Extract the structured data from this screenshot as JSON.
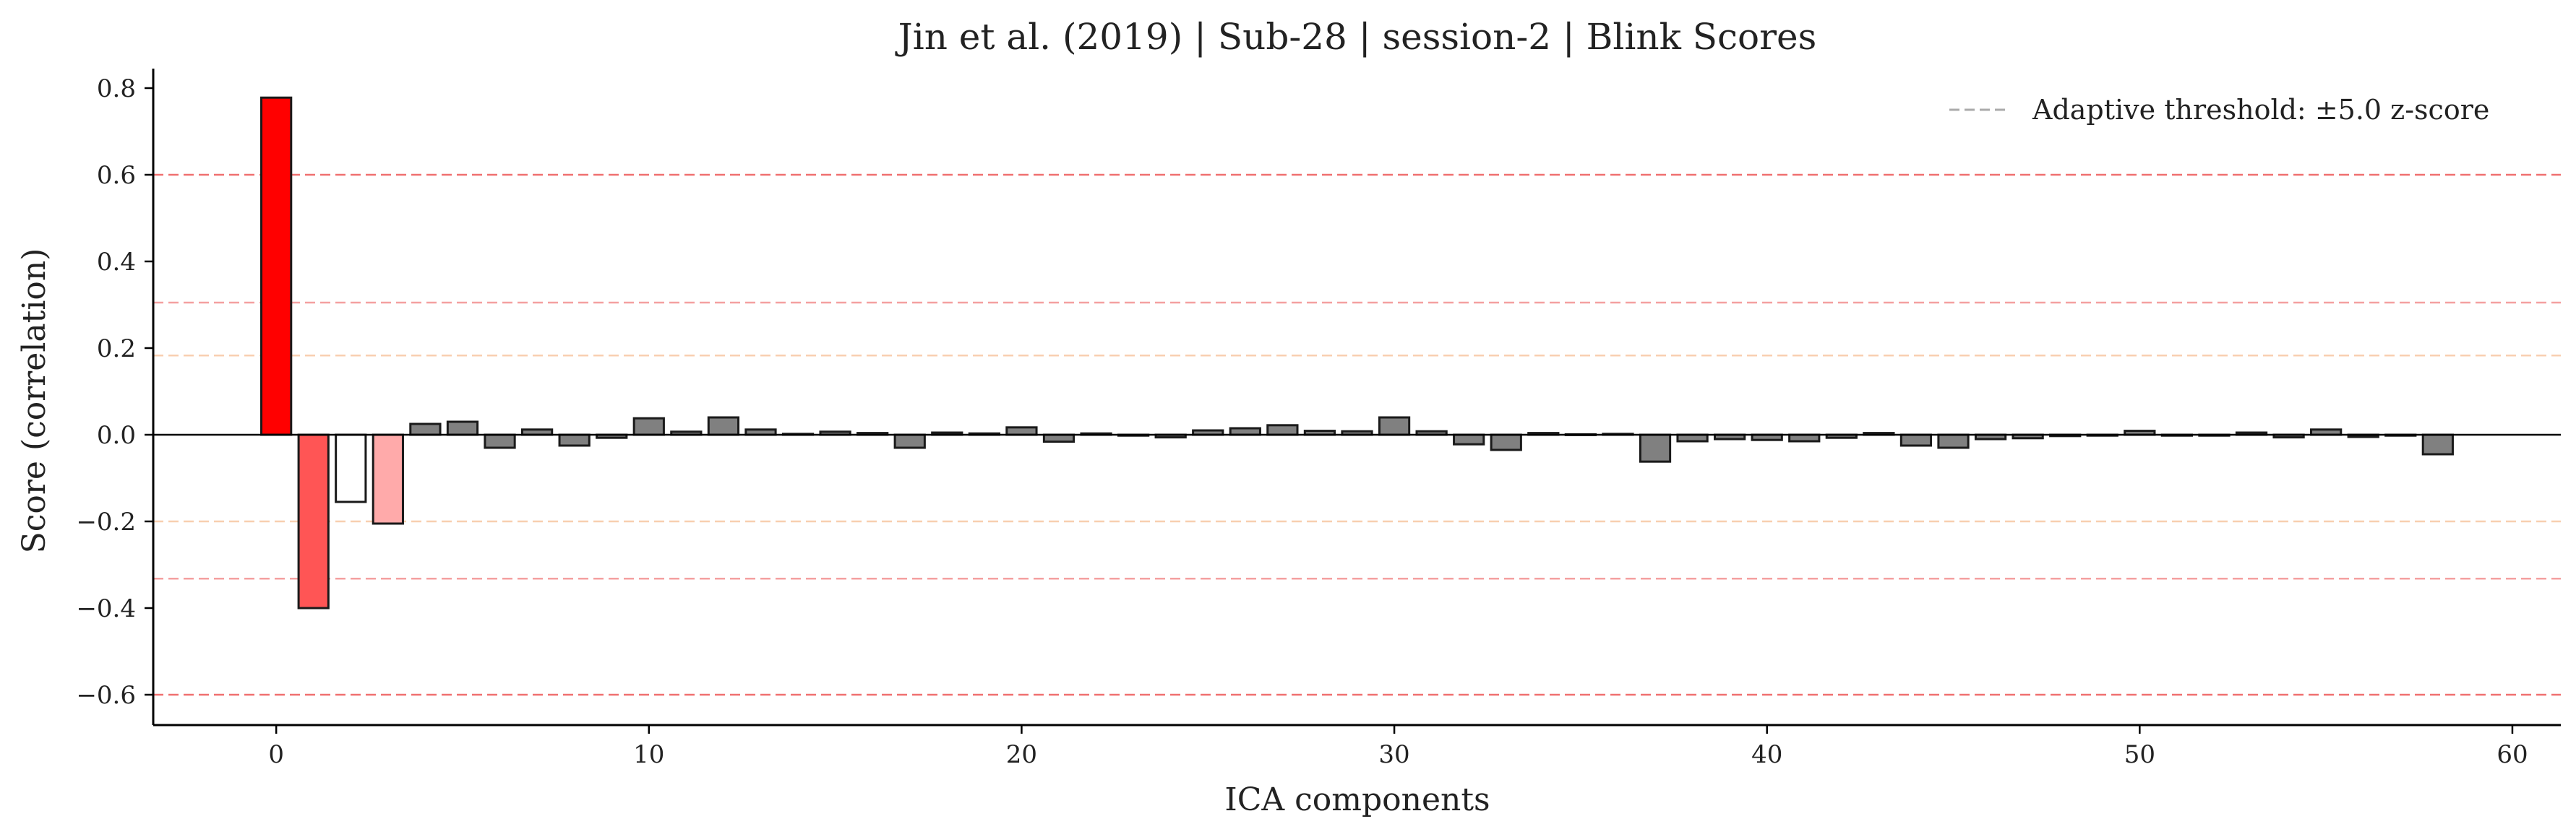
{
  "chart_data": {
    "type": "bar",
    "title": "Jin et al. (2019) | Sub-28 | session-2 | Blink Scores",
    "xlabel": "ICA components",
    "ylabel": "Score (correlation)",
    "xlim": [
      -3.3,
      61.3
    ],
    "ylim": [
      -0.67,
      0.845
    ],
    "xticks": [
      0,
      10,
      20,
      30,
      40,
      50,
      60
    ],
    "yticks": [
      -0.6,
      -0.4,
      -0.2,
      0.0,
      0.2,
      0.4,
      0.6,
      0.8
    ],
    "xtick_labels": [
      "0",
      "10",
      "20",
      "30",
      "40",
      "50",
      "60"
    ],
    "ytick_labels": [
      "−0.6",
      "−0.4",
      "−0.2",
      "0.0",
      "0.2",
      "0.4",
      "0.6",
      "0.8"
    ],
    "legend": {
      "position": "top-right",
      "label": "Adaptive threshold: ±5.0 z-score"
    },
    "threshold_lines": [
      {
        "value": 0.6,
        "color": "#f07070"
      },
      {
        "value": -0.6,
        "color": "#f07070"
      },
      {
        "value": 0.305,
        "color": "#f4a0a0"
      },
      {
        "value": -0.332,
        "color": "#f4a0a0"
      },
      {
        "value": 0.183,
        "color": "#f8cfb0"
      },
      {
        "value": -0.2,
        "color": "#f8cfb0"
      }
    ],
    "x": [
      0,
      1,
      2,
      3,
      4,
      5,
      6,
      7,
      8,
      9,
      10,
      11,
      12,
      13,
      14,
      15,
      16,
      17,
      18,
      19,
      20,
      21,
      22,
      23,
      24,
      25,
      26,
      27,
      28,
      29,
      30,
      31,
      32,
      33,
      34,
      35,
      36,
      37,
      38,
      39,
      40,
      41,
      42,
      43,
      44,
      45,
      46,
      47,
      48,
      49,
      50,
      51,
      52,
      53,
      54,
      55,
      56,
      57,
      58
    ],
    "values": [
      0.778,
      -0.4,
      -0.155,
      -0.205,
      0.025,
      0.03,
      -0.03,
      0.012,
      -0.025,
      -0.007,
      0.038,
      0.007,
      0.04,
      0.012,
      0.002,
      0.007,
      0.004,
      -0.03,
      0.005,
      0.003,
      0.017,
      -0.016,
      0.003,
      -0.002,
      -0.006,
      0.01,
      0.015,
      0.022,
      0.009,
      0.008,
      0.04,
      0.008,
      -0.022,
      -0.035,
      0.004,
      0.001,
      0.002,
      -0.062,
      -0.015,
      -0.01,
      -0.012,
      -0.015,
      -0.007,
      0.004,
      -0.025,
      -0.03,
      -0.01,
      -0.008,
      -0.003,
      -0.002,
      0.009,
      -0.002,
      -0.002,
      0.005,
      -0.006,
      0.012,
      -0.005,
      -0.002,
      -0.045
    ],
    "bar_colors": [
      "#ff0000",
      "#ff5555",
      "#ffffff",
      "#ffaaaa"
    ],
    "default_bar_color": "#808080",
    "bar_edge_color": "#1a1a1a"
  }
}
